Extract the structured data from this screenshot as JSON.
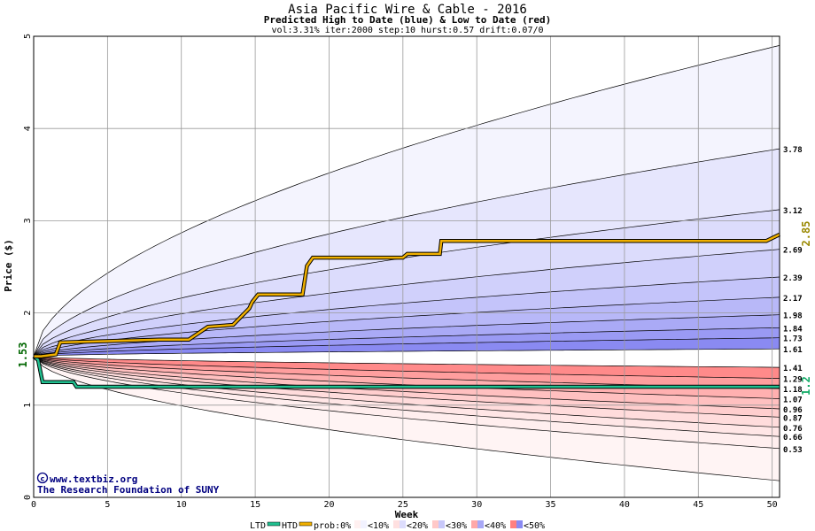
{
  "chart_data": {
    "type": "area",
    "title": "Asia Pacific Wire & Cable - 2016",
    "subtitle": "Predicted High to Date (blue) &  Low to Date (red)",
    "params": "vol:3.31% iter:2000 step:10 hurst:0.57 drift:0.07/0",
    "xlabel": "Week",
    "ylabel": "Price ($)",
    "xlim": [
      0,
      50.5
    ],
    "ylim": [
      0,
      5
    ],
    "xticks": [
      "0",
      "5",
      "10",
      "15",
      "20",
      "25",
      "30",
      "35",
      "40",
      "45",
      "50"
    ],
    "yticks": [
      "0",
      "1",
      "2",
      "3",
      "4",
      "5"
    ],
    "grid": true,
    "start_price": "1.53",
    "htd_final_label": "2.85",
    "ltd_final_label": "1.2",
    "right_labels": [
      "3.78",
      "3.12",
      "2.69",
      "2.39",
      "2.17",
      "1.98",
      "1.84",
      "1.73",
      "1.61",
      "1.41",
      "1.29",
      "1.18",
      "1.07",
      "0.96",
      "0.87",
      "0.76",
      "0.66",
      "0.53"
    ],
    "upper_levels": [
      4.9,
      3.78,
      3.12,
      2.69,
      2.39,
      2.17,
      1.98,
      1.84,
      1.73,
      1.61
    ],
    "lower_levels": [
      1.41,
      1.29,
      1.18,
      1.07,
      0.96,
      0.87,
      0.76,
      0.66,
      0.53,
      0.18
    ],
    "htd_series": {
      "name": "HTD",
      "x": [
        0,
        0.5,
        1.5,
        1.8,
        8.5,
        10.5,
        11.8,
        13.5,
        14.6,
        14.8,
        15.2,
        18.2,
        18.5,
        18.9,
        25.0,
        25.3,
        27.5,
        27.6,
        49.6,
        50.5
      ],
      "y": [
        1.53,
        1.53,
        1.55,
        1.68,
        1.71,
        1.71,
        1.85,
        1.87,
        2.05,
        2.12,
        2.2,
        2.2,
        2.51,
        2.6,
        2.6,
        2.64,
        2.64,
        2.78,
        2.78,
        2.85
      ]
    },
    "ltd_series": {
      "name": "LTD",
      "x": [
        0,
        0.3,
        0.6,
        2.7,
        2.9,
        50.5
      ],
      "y": [
        1.53,
        1.49,
        1.25,
        1.25,
        1.2,
        1.2
      ]
    },
    "legend": {
      "ltd_label": "LTD",
      "htd_label": "HTD",
      "prob_label": "prob:0%",
      "items": [
        "<10%",
        "<20%",
        "<30%",
        "<40%",
        "<50%"
      ]
    },
    "watermark_site": "www.textbiz.org",
    "watermark_org": "The Research Foundation of SUNY",
    "colors": {
      "htd": "#f0b000",
      "ltd": "#20c090",
      "start_label": "#006600",
      "htd_label": "#998800",
      "ltd_label": "#11aa66",
      "legend_blue": [
        "#f2f2ff",
        "#dcdcfc",
        "#c8c8fa",
        "#a8a8f6",
        "#8a8af2"
      ],
      "legend_red": [
        "#fff0f0",
        "#ffe0e0",
        "#ffc8c8",
        "#ffa8a8",
        "#ff8080"
      ]
    }
  }
}
